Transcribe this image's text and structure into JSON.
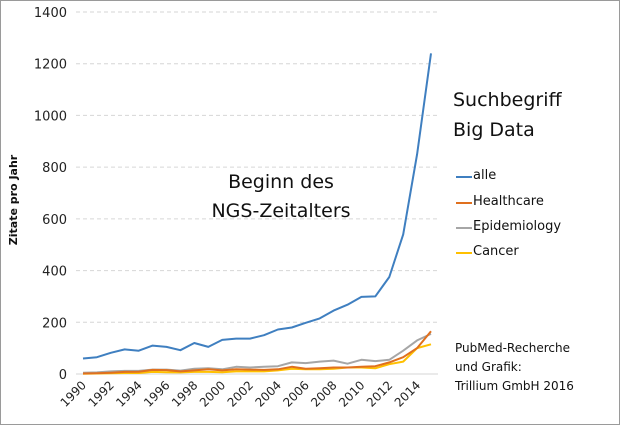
{
  "chart_data": {
    "type": "line",
    "title": "",
    "xlabel": "",
    "ylabel": "Zitate pro Jahr",
    "xlim": [
      1989.5,
      2015.5
    ],
    "ylim": [
      0,
      1400
    ],
    "yticks": [
      0,
      200,
      400,
      600,
      800,
      1000,
      1200,
      1400
    ],
    "xticks": [
      1990,
      1992,
      1994,
      1996,
      1998,
      2000,
      2002,
      2004,
      2006,
      2008,
      2010,
      2012,
      2014
    ],
    "grid": "horizontal dashed",
    "x": [
      1990,
      1991,
      1992,
      1993,
      1994,
      1995,
      1996,
      1997,
      1998,
      1999,
      2000,
      2001,
      2002,
      2003,
      2004,
      2005,
      2006,
      2007,
      2008,
      2009,
      2010,
      2011,
      2012,
      2013,
      2014,
      2015
    ],
    "series": [
      {
        "name": "alle",
        "color": "#3f7fc0",
        "values": [
          60,
          65,
          82,
          95,
          90,
          110,
          105,
          92,
          120,
          105,
          132,
          137,
          137,
          150,
          172,
          180,
          198,
          215,
          245,
          268,
          298,
          300,
          375,
          540,
          850,
          1240
        ]
      },
      {
        "name": "Healthcare",
        "color": "#e0701e",
        "values": [
          2,
          3,
          5,
          8,
          9,
          16,
          15,
          10,
          14,
          18,
          14,
          18,
          17,
          16,
          18,
          28,
          20,
          22,
          25,
          25,
          28,
          30,
          45,
          65,
          100,
          165
        ]
      },
      {
        "name": "Epidemiology",
        "color": "#a6a6a6",
        "values": [
          5,
          6,
          10,
          12,
          12,
          17,
          17,
          13,
          20,
          22,
          18,
          28,
          25,
          28,
          30,
          45,
          42,
          48,
          52,
          40,
          55,
          50,
          55,
          90,
          130,
          155
        ]
      },
      {
        "name": "Cancer",
        "color": "#ffc000",
        "values": [
          1,
          2,
          3,
          4,
          4,
          8,
          7,
          6,
          8,
          8,
          7,
          10,
          10,
          10,
          14,
          20,
          18,
          18,
          20,
          25,
          25,
          22,
          38,
          48,
          100,
          115
        ]
      }
    ],
    "annotations": {
      "center_line1": "Beginn des",
      "center_line2": "NGS-Zeitalters",
      "legend_title_line1": "Suchbegriff",
      "legend_title_line2": "Big Data",
      "source_line1": "PubMed-Recherche",
      "source_line2": "und Grafik:",
      "source_line3": "Trillium GmbH 2016"
    },
    "legend_placement": "right"
  }
}
